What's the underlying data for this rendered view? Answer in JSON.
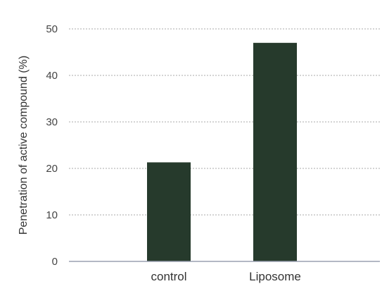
{
  "chart_data": {
    "type": "bar",
    "categories": [
      "control",
      "Liposome"
    ],
    "values": [
      21.3,
      47
    ],
    "title": "",
    "xlabel": "",
    "ylabel": "Penetration of  active compound (%)",
    "ylim": [
      0,
      50
    ],
    "yticks": [
      "0",
      "10",
      "20",
      "30",
      "40",
      "50"
    ],
    "grid": true,
    "bar_color": "#263a2c"
  }
}
